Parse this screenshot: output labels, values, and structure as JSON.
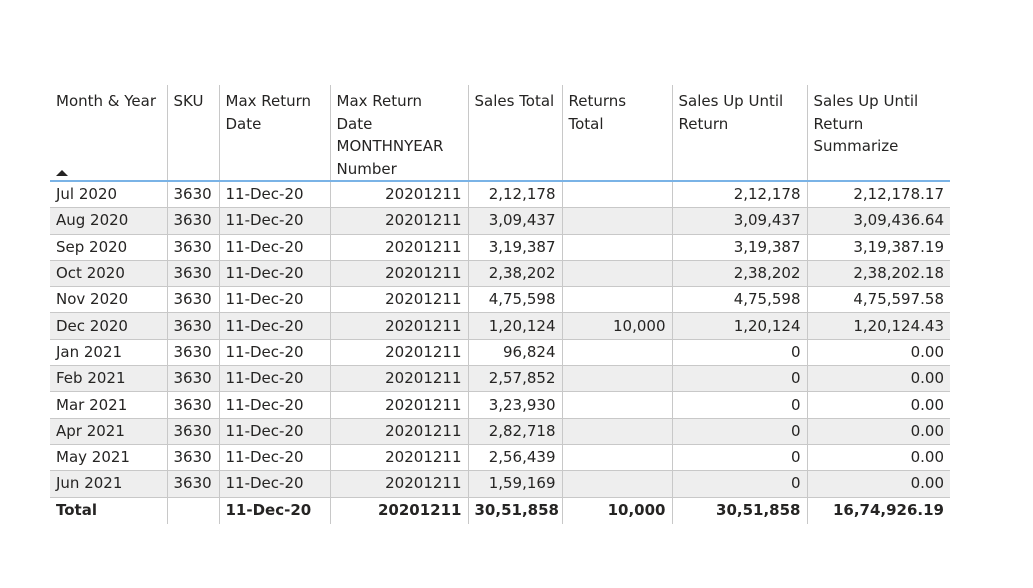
{
  "table": {
    "columns": [
      {
        "label": "Month & Year",
        "align": "left",
        "sorted": "ascending"
      },
      {
        "label": "SKU",
        "align": "left"
      },
      {
        "label": "Max Return Date",
        "align": "left"
      },
      {
        "label": "Max Return Date MONTHNYEAR Number",
        "align": "right"
      },
      {
        "label": "Sales Total",
        "align": "right"
      },
      {
        "label": "Returns Total",
        "align": "right"
      },
      {
        "label": "Sales Up Until Return",
        "align": "right"
      },
      {
        "label": "Sales Up Until Return Summarize",
        "align": "right"
      }
    ],
    "rows": [
      [
        "Jul 2020",
        "3630",
        "11-Dec-20",
        "20201211",
        "2,12,178",
        "",
        "2,12,178",
        "2,12,178.17"
      ],
      [
        "Aug 2020",
        "3630",
        "11-Dec-20",
        "20201211",
        "3,09,437",
        "",
        "3,09,437",
        "3,09,436.64"
      ],
      [
        "Sep 2020",
        "3630",
        "11-Dec-20",
        "20201211",
        "3,19,387",
        "",
        "3,19,387",
        "3,19,387.19"
      ],
      [
        "Oct 2020",
        "3630",
        "11-Dec-20",
        "20201211",
        "2,38,202",
        "",
        "2,38,202",
        "2,38,202.18"
      ],
      [
        "Nov 2020",
        "3630",
        "11-Dec-20",
        "20201211",
        "4,75,598",
        "",
        "4,75,598",
        "4,75,597.58"
      ],
      [
        "Dec 2020",
        "3630",
        "11-Dec-20",
        "20201211",
        "1,20,124",
        "10,000",
        "1,20,124",
        "1,20,124.43"
      ],
      [
        "Jan 2021",
        "3630",
        "11-Dec-20",
        "20201211",
        "96,824",
        "",
        "0",
        "0.00"
      ],
      [
        "Feb 2021",
        "3630",
        "11-Dec-20",
        "20201211",
        "2,57,852",
        "",
        "0",
        "0.00"
      ],
      [
        "Mar 2021",
        "3630",
        "11-Dec-20",
        "20201211",
        "3,23,930",
        "",
        "0",
        "0.00"
      ],
      [
        "Apr 2021",
        "3630",
        "11-Dec-20",
        "20201211",
        "2,82,718",
        "",
        "0",
        "0.00"
      ],
      [
        "May 2021",
        "3630",
        "11-Dec-20",
        "20201211",
        "2,56,439",
        "",
        "0",
        "0.00"
      ],
      [
        "Jun 2021",
        "3630",
        "11-Dec-20",
        "20201211",
        "1,59,169",
        "",
        "0",
        "0.00"
      ]
    ],
    "total": [
      "Total",
      "",
      "11-Dec-20",
      "20201211",
      "30,51,858",
      "10,000",
      "30,51,858",
      "16,74,926.19"
    ]
  },
  "colors": {
    "header_rule": "#7ab3e6",
    "total_rule": "#3c94d6",
    "alt_row_bg": "#eeeeee",
    "grid": "#c8c8c8",
    "text": "#252423"
  }
}
